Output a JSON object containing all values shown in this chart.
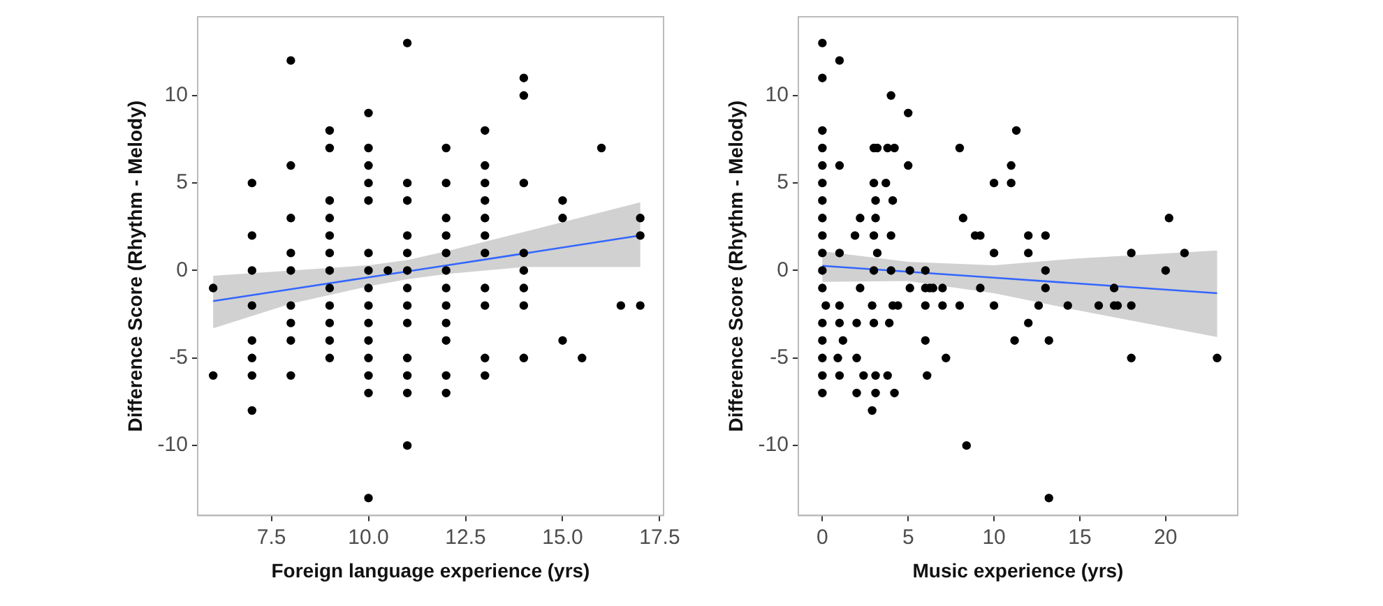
{
  "chart_data": [
    {
      "type": "scatter",
      "xlabel": "Foreign language experience (yrs)",
      "ylabel": "Difference Score (Rhythm - Melody)",
      "grid": false,
      "legend": false,
      "marker": "circle",
      "xlim": [
        5.6,
        17.6
      ],
      "xticks": [
        {
          "value": 7.5,
          "label": "7.5"
        },
        {
          "value": 10,
          "label": "10.0"
        },
        {
          "value": 12.5,
          "label": "12.5"
        },
        {
          "value": 15,
          "label": "15.0"
        },
        {
          "value": 17.5,
          "label": "17.5"
        }
      ],
      "ylim": [
        -14,
        14.5
      ],
      "yticks": [
        -10,
        -5,
        0,
        5,
        10
      ],
      "series": [
        {
          "color": "#000000",
          "x": [
            11,
            8,
            14,
            14,
            10,
            9,
            13,
            9,
            10,
            12,
            16,
            8,
            10,
            13,
            7,
            10,
            11,
            12,
            13,
            14,
            9,
            10,
            11,
            13,
            15,
            8,
            9,
            12,
            13,
            15,
            17,
            7,
            9,
            11,
            12,
            13,
            17,
            8,
            9,
            10,
            11,
            12,
            13,
            14,
            7,
            8,
            9,
            10,
            10.5,
            11,
            12,
            14,
            6,
            9,
            10,
            11,
            12,
            13,
            14,
            7,
            8,
            9,
            10,
            11,
            12,
            13,
            14,
            16.5,
            17,
            8,
            9,
            10,
            11,
            12,
            7,
            8,
            9,
            10,
            12,
            15,
            7,
            9,
            10,
            11,
            13,
            14,
            15.5,
            6,
            7,
            8,
            10,
            11,
            12,
            13,
            10,
            11,
            12,
            7,
            11,
            10
          ],
          "values": [
            13,
            12,
            11,
            10,
            9,
            8,
            8,
            7,
            7,
            7,
            7,
            6,
            6,
            6,
            5,
            5,
            5,
            5,
            5,
            5,
            4,
            4,
            4,
            4,
            4,
            3,
            3,
            3,
            3,
            3,
            3,
            2,
            2,
            2,
            2,
            2,
            2,
            1,
            1,
            1,
            1,
            1,
            1,
            1,
            0,
            0,
            0,
            0,
            0,
            0,
            0,
            0,
            -1,
            -1,
            -1,
            -1,
            -1,
            -1,
            -1,
            -2,
            -2,
            -2,
            -2,
            -2,
            -2,
            -2,
            -2,
            -2,
            -2,
            -3,
            -3,
            -3,
            -3,
            -3,
            -4,
            -4,
            -4,
            -4,
            -4,
            -4,
            -5,
            -5,
            -5,
            -5,
            -5,
            -5,
            -5,
            -6,
            -6,
            -6,
            -6,
            -6,
            -6,
            -6,
            -7,
            -7,
            -7,
            -8,
            -10,
            -13
          ]
        },
        {
          "type": "line",
          "marker": "none",
          "color": "#3366ff",
          "x": [
            6,
            8,
            10,
            11,
            12,
            14,
            17
          ],
          "values": [
            -1.75,
            -1.07,
            -0.39,
            -0.05,
            0.29,
            0.97,
            2.0
          ],
          "lower": [
            -3.3,
            -1.9,
            -0.9,
            -0.5,
            -0.2,
            0.2,
            0.2
          ],
          "upper": [
            -0.3,
            0.0,
            0.3,
            0.6,
            1.1,
            2.2,
            3.9
          ]
        }
      ]
    },
    {
      "type": "scatter",
      "xlabel": "Music experience (yrs)",
      "ylabel": "Difference Score (Rhythm - Melody)",
      "grid": false,
      "legend": false,
      "marker": "circle",
      "xlim": [
        -1.4,
        24.2
      ],
      "xticks": [
        0,
        5,
        10,
        15,
        20
      ],
      "ylim": [
        -14,
        14.5
      ],
      "yticks": [
        -10,
        -5,
        0,
        5,
        10
      ],
      "series": [
        {
          "color": "#000000",
          "x": [
            0,
            1,
            0,
            4,
            5,
            0,
            11.3,
            0,
            3,
            3.2,
            3.8,
            4.2,
            8,
            0,
            1,
            5,
            11,
            0,
            3,
            3.7,
            10,
            11,
            0,
            3.1,
            4.1,
            0,
            2.2,
            3.1,
            8.2,
            20.2,
            0,
            1.9,
            3,
            4,
            8.9,
            9.2,
            12,
            13,
            0,
            1,
            3.2,
            10,
            12,
            18,
            21.1,
            0,
            3,
            4,
            5.1,
            6,
            13,
            20,
            0,
            2.2,
            5.1,
            6,
            6.25,
            6.45,
            7,
            9.2,
            13,
            17,
            0.2,
            1,
            2.9,
            4.1,
            4.4,
            6,
            7,
            8,
            10,
            12.6,
            14.3,
            16.1,
            17,
            17.2,
            18,
            0,
            1,
            2,
            3,
            3.9,
            12,
            0,
            1.2,
            6,
            11.2,
            13.2,
            0,
            0.9,
            2,
            7.2,
            18,
            23,
            0,
            1,
            2.4,
            3.1,
            3.8,
            6.1,
            0,
            2,
            3.1,
            4.2,
            2.9,
            8.4,
            13.2
          ],
          "values": [
            13,
            12,
            11,
            10,
            9,
            8,
            8,
            7,
            7,
            7,
            7,
            7,
            7,
            6,
            6,
            6,
            6,
            5,
            5,
            5,
            5,
            5,
            4,
            4,
            4,
            3,
            3,
            3,
            3,
            3,
            2,
            2,
            2,
            2,
            2,
            2,
            2,
            2,
            1,
            1,
            1,
            1,
            1,
            1,
            1,
            0,
            0,
            0,
            0,
            0,
            0,
            0,
            -1,
            -1,
            -1,
            -1,
            -1,
            -1,
            -1,
            -1,
            -1,
            -1,
            -2,
            -2,
            -2,
            -2,
            -2,
            -2,
            -2,
            -2,
            -2,
            -2,
            -2,
            -2,
            -2,
            -2,
            -2,
            -3,
            -3,
            -3,
            -3,
            -3,
            -3,
            -4,
            -4,
            -4,
            -4,
            -4,
            -5,
            -5,
            -5,
            -5,
            -5,
            -5,
            -6,
            -6,
            -6,
            -6,
            -6,
            -6,
            -7,
            -7,
            -7,
            -7,
            -8,
            -10,
            -13
          ]
        },
        {
          "type": "line",
          "marker": "none",
          "color": "#3366ff",
          "x": [
            0,
            5,
            10,
            15,
            23
          ],
          "values": [
            0.27,
            -0.07,
            -0.41,
            -0.75,
            -1.3
          ],
          "lower": [
            -0.65,
            -0.6,
            -1.3,
            -2.3,
            -3.8
          ],
          "upper": [
            1.1,
            0.5,
            0.3,
            0.7,
            1.15
          ]
        }
      ]
    }
  ]
}
